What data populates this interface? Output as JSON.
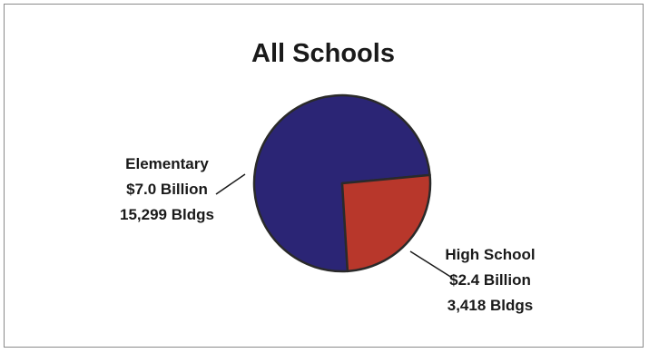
{
  "chart_data": {
    "type": "pie",
    "title": "All Schools",
    "slices": [
      {
        "name": "Elementary",
        "value": 7.0,
        "value_label": "$7.0 Billion",
        "buildings": "15,299 Bldgs",
        "color": "#2b2575"
      },
      {
        "name": "High School",
        "value": 2.4,
        "value_label": "$2.4 Billion",
        "buildings": "3,418 Bldgs",
        "color": "#b8372b"
      }
    ],
    "legend": "none"
  }
}
